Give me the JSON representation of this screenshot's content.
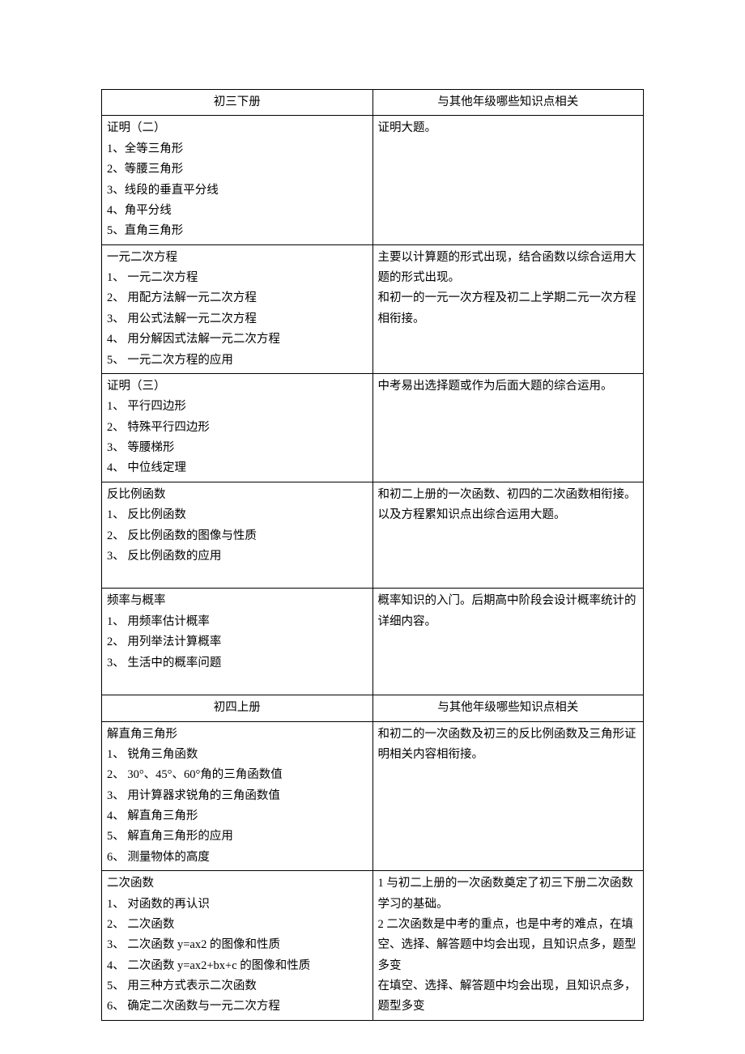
{
  "sections": [
    {
      "header_left": "初三下册",
      "header_right": "与其他年级哪些知识点相关",
      "rows": [
        {
          "left_title": "证明（二）",
          "left_items": [
            "1、全等三角形",
            "2、等腰三角形",
            "3、线段的垂直平分线",
            "4、角平分线",
            "5、直角三角形"
          ],
          "right_lines": [
            "证明大题。"
          ],
          "trailing_blank": false
        },
        {
          "left_title": "一元二次方程",
          "left_items": [
            "1、 一元二次方程",
            "2、 用配方法解一元二次方程",
            "3、 用公式法解一元二次方程",
            "4、 用分解因式法解一元二次方程",
            "5、 一元二次方程的应用"
          ],
          "right_lines": [
            "主要以计算题的形式出现，结合函数以综合运用大题的形式出现。",
            "和初一的一元一次方程及初二上学期二元一次方程相衔接。"
          ],
          "trailing_blank": false
        },
        {
          "left_title": "证明（三）",
          "left_items": [
            "1、 平行四边形",
            "2、 特殊平行四边形",
            "3、 等腰梯形",
            "4、 中位线定理"
          ],
          "right_lines": [
            "中考易出选择题或作为后面大题的综合运用。"
          ],
          "trailing_blank": false
        },
        {
          "left_title": "反比例函数",
          "left_items": [
            "1、 反比例函数",
            "2、 反比例函数的图像与性质",
            "3、 反比例函数的应用"
          ],
          "right_lines": [
            "和初二上册的一次函数、初四的二次函数相衔接。以及方程累知识点出综合运用大题。"
          ],
          "trailing_blank": true
        },
        {
          "left_title": "频率与概率",
          "left_items": [
            "1、 用频率估计概率",
            "2、 用列举法计算概率",
            "3、 生活中的概率问题"
          ],
          "right_lines": [
            "概率知识的入门。后期高中阶段会设计概率统计的详细内容。"
          ],
          "trailing_blank": true
        }
      ]
    },
    {
      "header_left": "初四上册",
      "header_right": "与其他年级哪些知识点相关",
      "rows": [
        {
          "left_title": "解直角三角形",
          "left_items": [
            "1、 锐角三角函数",
            "2、 30°、45°、60°角的三角函数值",
            "3、 用计算器求锐角的三角函数值",
            "4、 解直角三角形",
            "5、 解直角三角形的应用",
            "6、 测量物体的高度"
          ],
          "right_lines": [
            "和初二的一次函数及初三的反比例函数及三角形证明相关内容相衔接。"
          ],
          "trailing_blank": false
        },
        {
          "left_title": "二次函数",
          "left_items": [
            "1、 对函数的再认识",
            "2、 二次函数",
            "3、 二次函数 y=ax2 的图像和性质",
            "4、 二次函数 y=ax2+bx+c 的图像和性质",
            "5、 用三种方式表示二次函数",
            "6、 确定二次函数与一元二次方程"
          ],
          "right_lines": [
            "1 与初二上册的一次函数奠定了初三下册二次函数学习的基础。",
            "2 二次函数是中考的重点，也是中考的难点，在填空、选择、解答题中均会出现，且知识点多，题型多变",
            "在填空、选择、解答题中均会出现，且知识点多，题型多变"
          ],
          "trailing_blank": false
        }
      ]
    }
  ]
}
